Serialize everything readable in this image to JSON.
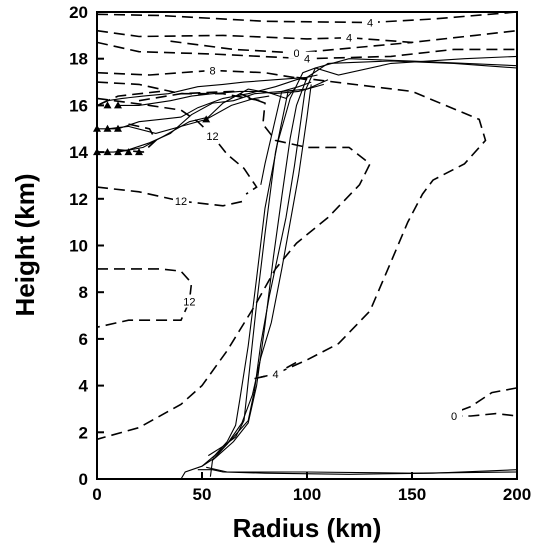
{
  "chart_data": {
    "type": "line",
    "title": "",
    "xlabel": "Radius (km)",
    "ylabel": "Height (km)",
    "xlim": [
      0,
      200
    ],
    "ylim": [
      0,
      20
    ],
    "xticks": [
      "0",
      "50",
      "100",
      "150",
      "200"
    ],
    "yticks": [
      "0",
      "2",
      "4",
      "6",
      "8",
      "10",
      "12",
      "14",
      "16",
      "18",
      "20"
    ],
    "grid": false,
    "legend": "none",
    "contours": [
      {
        "label": "4",
        "style": "dashed",
        "points": [
          [
            0,
            19.9
          ],
          [
            30,
            19.85
          ],
          [
            80,
            19.6
          ],
          [
            130,
            19.55
          ],
          [
            160,
            19.7
          ],
          [
            200,
            20
          ]
        ]
      },
      {
        "label": "4",
        "style": "dashed",
        "points": [
          [
            0,
            19.2
          ],
          [
            20,
            18.95
          ],
          [
            60,
            19.0
          ],
          [
            100,
            18.85
          ],
          [
            120,
            18.9
          ],
          [
            150,
            18.7
          ],
          [
            180,
            19.0
          ],
          [
            200,
            19.2
          ]
        ]
      },
      {
        "label": "0",
        "style": "dashed",
        "points": [
          [
            35,
            18.75
          ],
          [
            65,
            18.4
          ],
          [
            95,
            18.25
          ],
          [
            120,
            18.45
          ],
          [
            150,
            18.7
          ]
        ]
      },
      {
        "label": "4",
        "style": "dashed",
        "points": [
          [
            0,
            18.7
          ],
          [
            20,
            18.3
          ],
          [
            55,
            18.2
          ],
          [
            100,
            18.0
          ],
          [
            140,
            18.1
          ],
          [
            170,
            18.4
          ],
          [
            200,
            18.4
          ]
        ]
      },
      {
        "label": "8",
        "style": "dashed",
        "points": [
          [
            0,
            17.4
          ],
          [
            25,
            17.3
          ],
          [
            55,
            17.5
          ],
          [
            80,
            17.4
          ],
          [
            100,
            17.1
          ]
        ]
      },
      {
        "label": "",
        "style": "dashed",
        "points": [
          [
            0,
            17.0
          ],
          [
            20,
            16.9
          ],
          [
            40,
            16.5
          ],
          [
            60,
            16.5
          ],
          [
            78,
            16.2
          ]
        ]
      },
      {
        "label": "12",
        "style": "dashed",
        "points": [
          [
            0,
            16.3
          ],
          [
            25,
            16.0
          ],
          [
            40,
            15.8
          ],
          [
            48,
            15.3
          ],
          [
            55,
            14.7
          ],
          [
            62,
            13.9
          ],
          [
            70,
            13.3
          ],
          [
            76,
            12.5
          ],
          [
            71,
            12.2
          ]
        ]
      },
      {
        "label": "",
        "style": "dashed",
        "points": [
          [
            20,
            16.2
          ],
          [
            40,
            16.5
          ],
          [
            65,
            16.6
          ],
          [
            80,
            16.1
          ],
          [
            79,
            15.2
          ],
          [
            85,
            14.5
          ],
          [
            100,
            14.2
          ],
          [
            120,
            14.2
          ],
          [
            130,
            13.5
          ],
          [
            125,
            12.6
          ],
          [
            110,
            11.2
          ],
          [
            95,
            10.1
          ],
          [
            85,
            9.0
          ],
          [
            75,
            7.4
          ],
          [
            62,
            5.5
          ],
          [
            50,
            4.0
          ],
          [
            40,
            3.2
          ],
          [
            20,
            2.2
          ],
          [
            0,
            1.7
          ]
        ]
      },
      {
        "label": "12",
        "style": "dashed",
        "points": [
          [
            0,
            12.5
          ],
          [
            20,
            12.3
          ],
          [
            40,
            11.9
          ],
          [
            60,
            11.7
          ],
          [
            70,
            11.9
          ]
        ]
      },
      {
        "label": "12",
        "style": "dashed",
        "points": [
          [
            0,
            9.0
          ],
          [
            30,
            9.0
          ],
          [
            40,
            8.9
          ],
          [
            45,
            8.4
          ],
          [
            44,
            7.6
          ],
          [
            40,
            6.8
          ],
          [
            25,
            6.8
          ],
          [
            15,
            6.8
          ],
          [
            0,
            6.5
          ]
        ]
      },
      {
        "label": "",
        "style": "dashed",
        "points": [
          [
            30,
            16.6
          ],
          [
            10,
            16.4
          ],
          [
            0,
            16.0
          ]
        ]
      },
      {
        "label": "",
        "style": "dashed",
        "points": [
          [
            15,
            15.2
          ],
          [
            25,
            15.0
          ],
          [
            28,
            14.5
          ],
          [
            22,
            14.0
          ],
          [
            10,
            14.1
          ]
        ]
      },
      {
        "label": "",
        "style": "dashed",
        "points": [
          [
            95,
            17.2
          ],
          [
            150,
            16.6
          ],
          [
            182,
            15.4
          ],
          [
            185,
            14.5
          ],
          [
            175,
            13.5
          ],
          [
            160,
            12.8
          ],
          [
            155,
            12.2
          ],
          [
            148,
            11.0
          ],
          [
            140,
            9.3
          ],
          [
            130,
            7.2
          ],
          [
            115,
            5.8
          ],
          [
            100,
            5.1
          ],
          [
            85,
            4.5
          ],
          [
            75,
            4.3
          ]
        ]
      },
      {
        "label": "4",
        "style": "dashed",
        "points": [
          [
            75,
            4.3
          ],
          [
            85,
            4.5
          ],
          [
            95,
            5.0
          ]
        ]
      },
      {
        "label": "0",
        "style": "dashed",
        "points": [
          [
            200,
            3.9
          ],
          [
            188,
            3.7
          ],
          [
            178,
            3.1
          ],
          [
            172,
            2.9
          ],
          [
            170,
            2.7
          ],
          [
            178,
            2.7
          ],
          [
            190,
            2.8
          ],
          [
            200,
            2.7
          ]
        ]
      }
    ],
    "trajectories": [
      {
        "points": [
          [
            40,
            0
          ],
          [
            42,
            0.3
          ],
          [
            50,
            0.55
          ],
          [
            56,
            0.9
          ],
          [
            65,
            1.8
          ],
          [
            72,
            2.5
          ],
          [
            75,
            3.8
          ],
          [
            78,
            5.8
          ],
          [
            82,
            7.8
          ],
          [
            86,
            9.5
          ],
          [
            90,
            11.2
          ],
          [
            94,
            13.4
          ],
          [
            97,
            15.3
          ],
          [
            99,
            16.6
          ],
          [
            104,
            17.6
          ],
          [
            120,
            18.0
          ],
          [
            150,
            17.9
          ],
          [
            200,
            17.7
          ]
        ]
      },
      {
        "points": [
          [
            54,
            0.1
          ],
          [
            55,
            0.8
          ],
          [
            65,
            1.6
          ],
          [
            72,
            2.4
          ],
          [
            76,
            4.0
          ],
          [
            80,
            6.6
          ],
          [
            84,
            9.5
          ],
          [
            88,
            12.1
          ],
          [
            92,
            14.6
          ],
          [
            95,
            16.0
          ],
          [
            100,
            17.2
          ],
          [
            110,
            17.8
          ],
          [
            140,
            17.9
          ],
          [
            170,
            17.8
          ],
          [
            200,
            17.6
          ]
        ]
      },
      {
        "points": [
          [
            50,
            0.55
          ],
          [
            56,
            1.0
          ],
          [
            62,
            1.6
          ],
          [
            66,
            2.3
          ],
          [
            68,
            3.4
          ],
          [
            72,
            5.7
          ],
          [
            76,
            8.6
          ],
          [
            80,
            11.6
          ],
          [
            86,
            14.4
          ],
          [
            92,
            16.3
          ],
          [
            98,
            17.4
          ],
          [
            104,
            17.6
          ],
          [
            115,
            17.3
          ],
          [
            140,
            17.8
          ],
          [
            175,
            18.0
          ],
          [
            200,
            18.1
          ]
        ]
      },
      {
        "points": [
          [
            48,
            0.4
          ],
          [
            55,
            0.4
          ],
          [
            60,
            0.3
          ],
          [
            80,
            0.25
          ],
          [
            120,
            0.2
          ],
          [
            160,
            0.25
          ],
          [
            200,
            0.4
          ]
        ]
      },
      {
        "points": [
          [
            52,
            0.5
          ],
          [
            62,
            0.3
          ],
          [
            100,
            0.3
          ],
          [
            150,
            0.25
          ],
          [
            200,
            0.3
          ]
        ]
      },
      {
        "points": [
          [
            0,
            14
          ],
          [
            8,
            14
          ],
          [
            15,
            14.1
          ],
          [
            25,
            14.4
          ],
          [
            35,
            14.8
          ],
          [
            45,
            15.6
          ],
          [
            55,
            16.1
          ],
          [
            65,
            16.2
          ],
          [
            75,
            16.5
          ],
          [
            88,
            16.6
          ],
          [
            100,
            16.7
          ],
          [
            110,
            17.1
          ]
        ]
      },
      {
        "points": [
          [
            0,
            15
          ],
          [
            10,
            15.0
          ],
          [
            20,
            15.3
          ],
          [
            30,
            15.4
          ],
          [
            40,
            15.5
          ],
          [
            48,
            15.9
          ],
          [
            60,
            16.3
          ],
          [
            72,
            16.5
          ],
          [
            85,
            16.8
          ],
          [
            95,
            17.1
          ],
          [
            105,
            17.3
          ]
        ]
      },
      {
        "points": [
          [
            10,
            16
          ],
          [
            20,
            16
          ],
          [
            35,
            16.2
          ],
          [
            45,
            16.4
          ],
          [
            55,
            16.5
          ],
          [
            68,
            16.6
          ],
          [
            80,
            16.6
          ],
          [
            90,
            16.3
          ],
          [
            95,
            16.8
          ]
        ]
      },
      {
        "points": [
          [
            5,
            15
          ],
          [
            15,
            15.1
          ],
          [
            28,
            14.8
          ],
          [
            40,
            15.1
          ],
          [
            52,
            15.4
          ],
          [
            64,
            16.0
          ],
          [
            75,
            16.3
          ],
          [
            82,
            16.4
          ]
        ]
      },
      {
        "points": [
          [
            10,
            14
          ],
          [
            22,
            14.2
          ],
          [
            32,
            14.7
          ],
          [
            44,
            15.3
          ],
          [
            53,
            15.5
          ],
          [
            60,
            16.1
          ],
          [
            72,
            16.7
          ],
          [
            84,
            16.5
          ],
          [
            96,
            16.6
          ],
          [
            108,
            16.9
          ]
        ]
      },
      {
        "points": [
          [
            78,
            12.6
          ],
          [
            80,
            13.5
          ],
          [
            88,
            16.6
          ],
          [
            96,
            16.8
          ],
          [
            102,
            17.0
          ]
        ]
      },
      {
        "points": [
          [
            91,
            16.6
          ],
          [
            85,
            14.0
          ],
          [
            80,
            10.5
          ],
          [
            76,
            7.5
          ],
          [
            73,
            5.0
          ],
          [
            70,
            2.5
          ],
          [
            66,
            1.8
          ],
          [
            60,
            1.4
          ],
          [
            53,
            1.0
          ]
        ]
      },
      {
        "points": [
          [
            102,
            16.9
          ],
          [
            100,
            15.5
          ],
          [
            96,
            13.0
          ],
          [
            92,
            11.0
          ],
          [
            88,
            9.0
          ],
          [
            83,
            6.7
          ],
          [
            78,
            5.2
          ],
          [
            74,
            3.6
          ],
          [
            69,
            2.4
          ],
          [
            62,
            1.5
          ],
          [
            55,
            0.9
          ]
        ]
      },
      {
        "points": [
          [
            0,
            16
          ],
          [
            5,
            16.2
          ],
          [
            12,
            16.3
          ],
          [
            22,
            16.4
          ],
          [
            34,
            16.5
          ],
          [
            48,
            16.8
          ],
          [
            60,
            16.9
          ],
          [
            70,
            17.0
          ],
          [
            85,
            17.1
          ],
          [
            100,
            17.2
          ]
        ]
      }
    ],
    "markers": [
      [
        5,
        16
      ],
      [
        10,
        16
      ],
      [
        0,
        15
      ],
      [
        5,
        15
      ],
      [
        10,
        15
      ],
      [
        0,
        14
      ],
      [
        5,
        14
      ],
      [
        10,
        14
      ],
      [
        15,
        14
      ],
      [
        20,
        14
      ],
      [
        52,
        15.4
      ]
    ]
  }
}
